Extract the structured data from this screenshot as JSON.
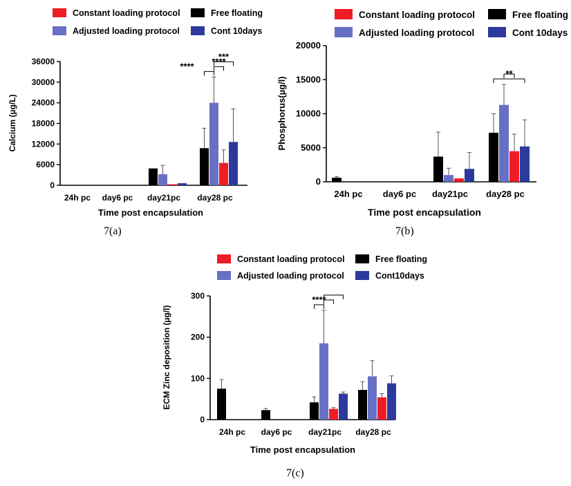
{
  "colors": {
    "free_floating": "#000000",
    "adjusted": "#6770C4",
    "constant": "#EE1C25",
    "cont10": "#2B3A9C",
    "axis": "#000000"
  },
  "captions": [
    "7(a)",
    "7(b)",
    "7(c)"
  ],
  "chart_data": [
    {
      "type": "bar",
      "panel": "7(a)",
      "xlabel": "Time post encapsulation",
      "ylabel": "Calcium (µg/L)",
      "categories": [
        "24h pc",
        "day6 pc",
        "day21pc",
        "day28 pc"
      ],
      "yticks": [
        "0",
        "6000",
        "12000",
        "18000",
        "24000",
        "30000",
        "36000"
      ],
      "ylim": [
        0,
        36000
      ],
      "legend": [
        "Constant loading protocol",
        "Free floating",
        "Adjusted loading protocol",
        "Cont 10days"
      ],
      "legend_placement": "top",
      "series": [
        {
          "name": "Free floating",
          "color_key": "free_floating",
          "values": [
            0,
            0,
            4900,
            10800
          ],
          "errors": [
            0,
            0,
            0,
            5800
          ]
        },
        {
          "name": "Adjusted loading protocol",
          "color_key": "adjusted",
          "values": [
            0,
            0,
            3200,
            24000
          ],
          "errors": [
            0,
            0,
            2600,
            7500
          ]
        },
        {
          "name": "Constant loading protocol",
          "color_key": "constant",
          "values": [
            0,
            0,
            300,
            6500
          ],
          "errors": [
            0,
            0,
            0,
            3800
          ]
        },
        {
          "name": "Cont 10days",
          "color_key": "cont10",
          "values": [
            0,
            0,
            600,
            12600
          ],
          "errors": [
            0,
            0,
            0,
            9600
          ]
        }
      ],
      "significance": [
        {
          "label": "****",
          "category": 3,
          "from_series": 0,
          "to_series": 1
        },
        {
          "label": "****",
          "category": 3,
          "from_series": 1,
          "to_series": 2
        },
        {
          "label": "***",
          "category": 3,
          "from_series": 1,
          "to_series": 3
        }
      ]
    },
    {
      "type": "bar",
      "panel": "7(b)",
      "xlabel": "Time post encapsulation",
      "ylabel": "Phosphorus(µg/l)",
      "categories": [
        "24h pc",
        "day6 pc",
        "day21pc",
        "day28 pc"
      ],
      "yticks": [
        "0",
        "5000",
        "10000",
        "15000",
        "20000"
      ],
      "ylim": [
        0,
        20000
      ],
      "legend": [
        "Constant loading protocol",
        "Free floating",
        "Adjusted loading protocol",
        "Cont 10days"
      ],
      "legend_placement": "top",
      "series": [
        {
          "name": "Free floating",
          "color_key": "free_floating",
          "values": [
            600,
            0,
            3700,
            7200
          ],
          "errors": [
            150,
            0,
            3600,
            2800
          ]
        },
        {
          "name": "Adjusted loading protocol",
          "color_key": "adjusted",
          "values": [
            0,
            0,
            1000,
            11300
          ],
          "errors": [
            0,
            0,
            1000,
            3000
          ]
        },
        {
          "name": "Constant loading protocol",
          "color_key": "constant",
          "values": [
            0,
            0,
            500,
            4500
          ],
          "errors": [
            0,
            0,
            0,
            2500
          ]
        },
        {
          "name": "Cont 10days",
          "color_key": "cont10",
          "values": [
            0,
            0,
            1900,
            5200
          ],
          "errors": [
            0,
            0,
            2400,
            3900
          ]
        }
      ],
      "significance": [
        {
          "label": "**",
          "category": 3,
          "from_series": 0,
          "to_series": 3
        },
        {
          "label": "",
          "category": 3,
          "from_series": 1,
          "to_series": 2
        }
      ]
    },
    {
      "type": "bar",
      "panel": "7(c)",
      "xlabel": "Time post encapsulation",
      "ylabel": "ECM Zinc deposition (µg/l)",
      "categories": [
        "24h pc",
        "day6 pc",
        "day21pc",
        "day28 pc"
      ],
      "yticks": [
        "0",
        "100",
        "200",
        "300"
      ],
      "ylim": [
        0,
        300
      ],
      "legend": [
        "Constant loading protocol",
        "Free floating",
        "Adjusted loading protocol",
        "Cont10days"
      ],
      "legend_placement": "top",
      "series": [
        {
          "name": "Free floating",
          "color_key": "free_floating",
          "values": [
            75,
            23,
            42,
            72
          ],
          "errors": [
            22,
            4,
            13,
            20
          ]
        },
        {
          "name": "Adjusted loading protocol",
          "color_key": "adjusted",
          "values": [
            0,
            0,
            185,
            105
          ],
          "errors": [
            0,
            0,
            80,
            38
          ]
        },
        {
          "name": "Constant loading protocol",
          "color_key": "constant",
          "values": [
            0,
            0,
            26,
            54
          ],
          "errors": [
            0,
            0,
            3,
            9
          ]
        },
        {
          "name": "Cont10days",
          "color_key": "cont10",
          "values": [
            0,
            0,
            63,
            88
          ],
          "errors": [
            0,
            0,
            4,
            18
          ]
        }
      ],
      "significance": [
        {
          "label": "****",
          "category": 2,
          "from_series": 0,
          "to_series": 1
        },
        {
          "label": "",
          "category": 2,
          "from_series": 1,
          "to_series": 2
        },
        {
          "label": "",
          "category": 2,
          "from_series": 1,
          "to_series": 3
        }
      ]
    }
  ]
}
